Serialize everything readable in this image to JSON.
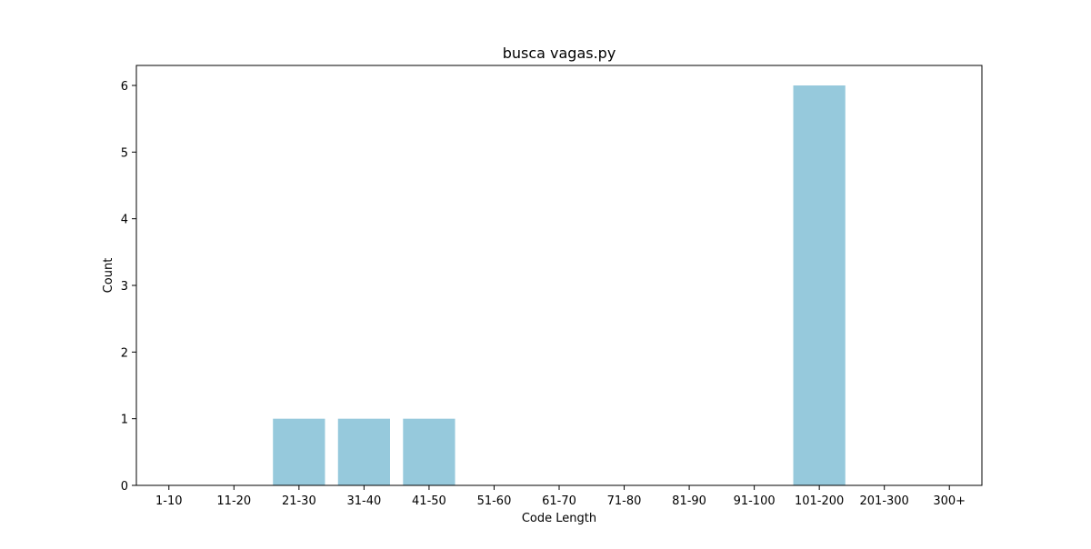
{
  "chart_data": {
    "type": "bar",
    "title": "busca vagas.py",
    "xlabel": "Code Length",
    "ylabel": "Count",
    "categories": [
      "1-10",
      "11-20",
      "21-30",
      "31-40",
      "41-50",
      "51-60",
      "61-70",
      "71-80",
      "81-90",
      "91-100",
      "101-200",
      "201-300",
      "300+"
    ],
    "values": [
      0,
      0,
      1,
      1,
      1,
      0,
      0,
      0,
      0,
      0,
      6,
      0,
      0
    ],
    "ylim": [
      0,
      6.3
    ],
    "yticks": [
      0,
      1,
      2,
      3,
      4,
      5,
      6
    ],
    "bar_color": "#96c9dc",
    "grid": false,
    "legend": "none"
  }
}
